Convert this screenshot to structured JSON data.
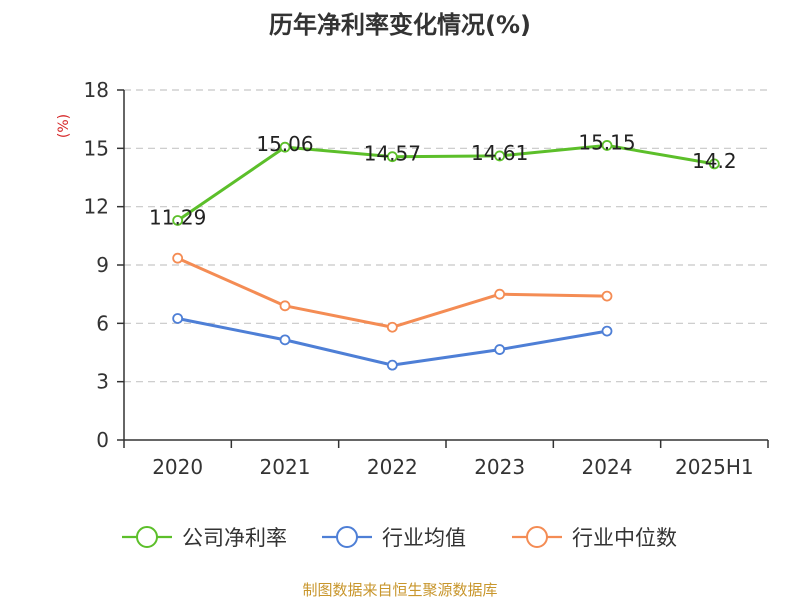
{
  "chart_data": {
    "type": "line",
    "title": "历年净利率变化情况(%)",
    "ylabel": "(%)",
    "xlabel": "",
    "categories": [
      "2020",
      "2021",
      "2022",
      "2023",
      "2024",
      "2025H1"
    ],
    "ylim": [
      0,
      18
    ],
    "yticks": [
      0,
      3,
      6,
      9,
      12,
      15,
      18
    ],
    "grid": "horizontal dashed",
    "legend_position": "bottom",
    "series": [
      {
        "name": "公司净利率",
        "color": "#5cbf2a",
        "values": [
          11.29,
          15.06,
          14.57,
          14.61,
          15.15,
          14.2
        ],
        "labels": [
          "11.29",
          "15.06",
          "14.57",
          "14.61",
          "15.15",
          "14.2"
        ]
      },
      {
        "name": "行业均值",
        "color": "#4e7fd6",
        "values": [
          6.25,
          5.15,
          3.85,
          4.65,
          5.6,
          null
        ]
      },
      {
        "name": "行业中位数",
        "color": "#f48c54",
        "values": [
          9.35,
          6.9,
          5.8,
          7.5,
          7.4,
          null
        ]
      }
    ]
  },
  "source": "制图数据来自恒生聚源数据库"
}
